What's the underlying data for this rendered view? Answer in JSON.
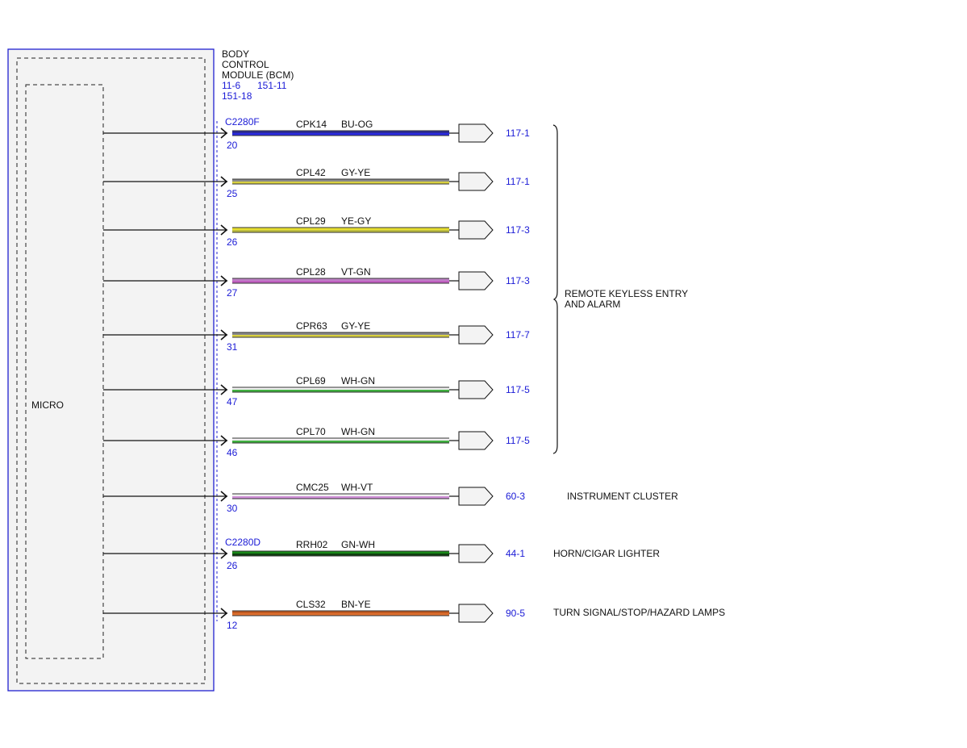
{
  "module": {
    "title_lines": [
      "BODY",
      "CONTROL",
      "MODULE (BCM)"
    ],
    "refs": [
      "11-6",
      "151-11",
      "151-18"
    ],
    "inner_label": "MICRO"
  },
  "connectors": [
    {
      "name": "C2280F"
    },
    {
      "name": "C2280D"
    }
  ],
  "circuits": [
    {
      "pin": "20",
      "circuit": "CPK14",
      "color_code": "BU-OG",
      "ref": "117-1",
      "stripe_colors": [
        "#2a2a9a",
        "#2a2ae0"
      ],
      "connector_label_index": 0
    },
    {
      "pin": "25",
      "circuit": "CPL42",
      "color_code": "GY-YE",
      "ref": "117-1",
      "stripe_colors": [
        "#8a8a8a",
        "#d8d040"
      ]
    },
    {
      "pin": "26",
      "circuit": "CPL29",
      "color_code": "YE-GY",
      "ref": "117-3",
      "stripe_colors": [
        "#e8e030",
        "#bdbd40"
      ]
    },
    {
      "pin": "27",
      "circuit": "CPL28",
      "color_code": "VT-GN",
      "ref": "117-3",
      "stripe_colors": [
        "#c080c8",
        "#c060c0"
      ]
    },
    {
      "pin": "31",
      "circuit": "CPR63",
      "color_code": "GY-YE",
      "ref": "117-7",
      "stripe_colors": [
        "#8a8a8a",
        "#d8d040"
      ]
    },
    {
      "pin": "47",
      "circuit": "CPL69",
      "color_code": "WH-GN",
      "ref": "117-5",
      "stripe_colors": [
        "#f0f0f0",
        "#40b040"
      ]
    },
    {
      "pin": "46",
      "circuit": "CPL70",
      "color_code": "WH-GN",
      "ref": "117-5",
      "stripe_colors": [
        "#f0f0f0",
        "#40b040"
      ]
    },
    {
      "pin": "30",
      "circuit": "CMC25",
      "color_code": "WH-VT",
      "ref": "60-3",
      "stripe_colors": [
        "#f0f0f0",
        "#d090d8"
      ]
    },
    {
      "pin": "26",
      "circuit": "RRH02",
      "color_code": "GN-WH",
      "ref": "44-1",
      "stripe_colors": [
        "#1a8a1a",
        "#104010"
      ],
      "connector_label_index": 1
    },
    {
      "pin": "12",
      "circuit": "CLS32",
      "color_code": "BN-YE",
      "ref": "90-5",
      "stripe_colors": [
        "#c05a20",
        "#e07030"
      ]
    }
  ],
  "destinations": [
    {
      "label_lines": [
        "REMOTE KEYLESS ENTRY",
        "AND ALARM"
      ]
    },
    {
      "label_lines": [
        "INSTRUMENT CLUSTER"
      ]
    },
    {
      "label_lines": [
        "HORN/CIGAR LIGHTER"
      ]
    },
    {
      "label_lines": [
        "TURN SIGNAL/STOP/HAZARD LAMPS"
      ]
    }
  ],
  "colors": {
    "module_border": "#2020d0",
    "ref_text": "#1a1ad6",
    "module_fill": "#f3f3f3"
  }
}
